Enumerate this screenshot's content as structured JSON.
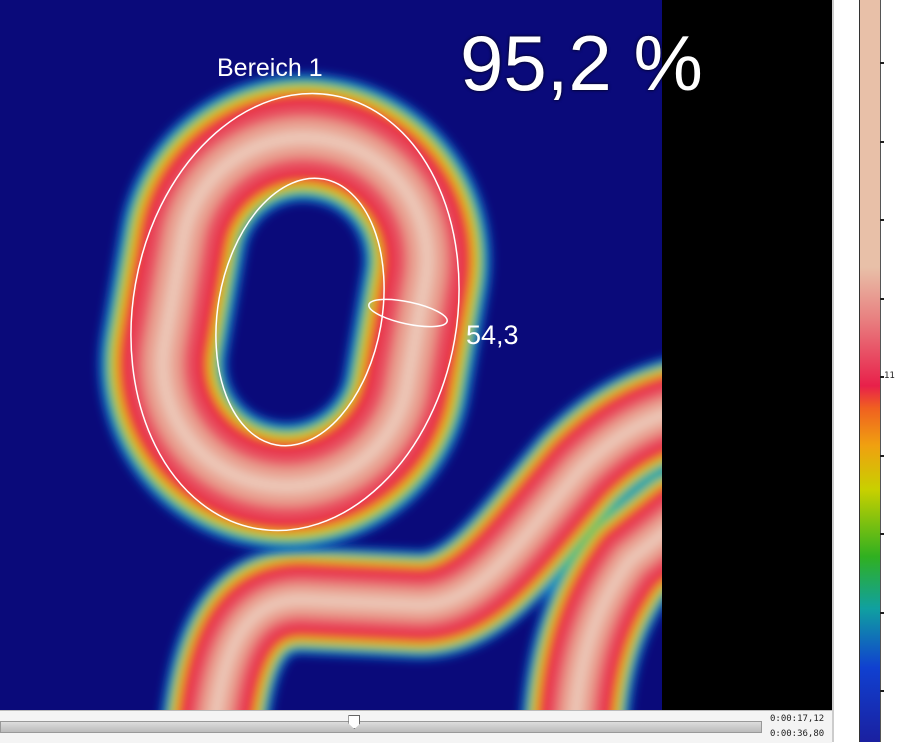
{
  "overlay": {
    "area_label": "Bereich 1",
    "area_percentage": "95,2 %",
    "spot_value": "54,3"
  },
  "color_scale": {
    "visible_tick_label": "11",
    "palette": [
      "#e8c0a8",
      "#e8204a",
      "#f0a010",
      "#c8d000",
      "#30b020",
      "#10a0a0",
      "#1040d0"
    ]
  },
  "timeline": {
    "current_time": "0:00:17,12",
    "total_time": "0:00:36,80",
    "position_fraction": 0.465
  },
  "colors": {
    "background_cold": "#0a0a7a",
    "hot": "#e8c0b0"
  }
}
